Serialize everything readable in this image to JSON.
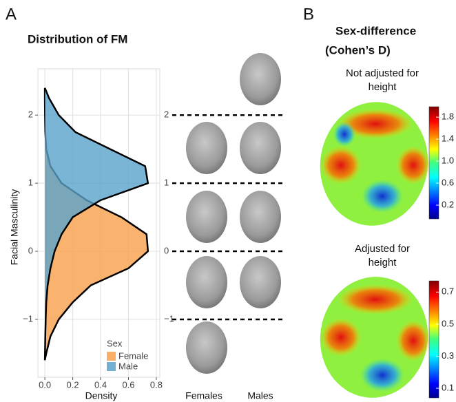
{
  "panel_a": {
    "label": "A"
  },
  "panel_b": {
    "label": "B",
    "title_lines": [
      "Sex-difference",
      "(Cohen’s D)"
    ]
  },
  "chart_data": [
    {
      "type": "density",
      "title": "Distribution of FM",
      "x_label": "Density",
      "y_label": "Facial Masculinity",
      "y": [
        -1.6,
        -1.5,
        -1.25,
        -1,
        -0.75,
        -0.5,
        -0.25,
        0,
        0.25,
        0.5,
        0.75,
        1,
        1.25,
        1.5,
        1.75,
        2,
        2.25,
        2.4
      ],
      "series": [
        {
          "name": "Female",
          "color": "#f9a04b",
          "values": [
            0,
            0.01,
            0.04,
            0.1,
            0.2,
            0.33,
            0.6,
            0.74,
            0.73,
            0.55,
            0.3,
            0.12,
            0.04,
            0.01,
            0.003,
            0.001,
            0,
            0
          ]
        },
        {
          "name": "Male",
          "color": "#5aa3cc",
          "values": [
            0,
            0.001,
            0.003,
            0.006,
            0.01,
            0.02,
            0.04,
            0.07,
            0.12,
            0.2,
            0.4,
            0.74,
            0.72,
            0.47,
            0.22,
            0.1,
            0.03,
            0
          ]
        }
      ],
      "legend_title": "Sex",
      "xlim": [
        -0.05,
        0.825
      ],
      "ylim": [
        -1.85,
        2.68
      ],
      "xticks": [
        {
          "value": 0,
          "label": "0.0"
        },
        0.2,
        0.4,
        0.6,
        0.8
      ],
      "yticks": [
        {
          "value": -1,
          "label": "−1"
        },
        0,
        1,
        2
      ],
      "grid": true,
      "face_columns": [
        "Females",
        "Males"
      ]
    },
    {
      "type": "colorbar",
      "title_lines": [
        "Not adjusted for",
        "height"
      ],
      "colormap": "jet",
      "clim": [
        -0.05,
        1.99
      ],
      "ticks": [
        0.2,
        0.6,
        {
          "value": 1,
          "label": "1.0"
        },
        1.4,
        1.8
      ]
    },
    {
      "type": "colorbar",
      "title_lines": [
        "Adjusted for",
        "height"
      ],
      "colormap": "jet",
      "clim": [
        0.04,
        0.77
      ],
      "ticks": [
        0.1,
        0.3,
        0.5,
        0.7
      ]
    }
  ]
}
